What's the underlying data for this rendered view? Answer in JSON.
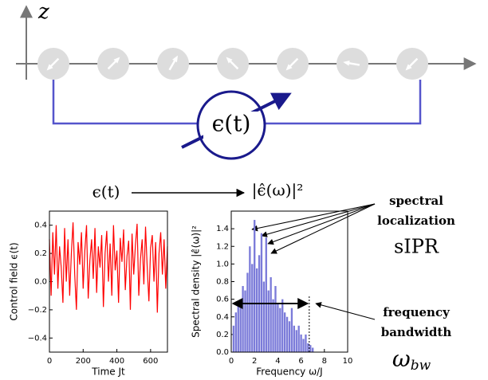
{
  "diagram": {
    "axis_label": "z",
    "control_label": "ϵ(t)",
    "signal_label": "ϵ(t)",
    "spectrum_label": "|ϵ̂(ω)|²"
  },
  "annotations": {
    "localization_line1": "spectral",
    "localization_line2": "localization",
    "localization_symbol": "sIPR",
    "bandwidth_line1": "frequency",
    "bandwidth_line2": "bandwidth",
    "bandwidth_symbol": "ω",
    "bandwidth_subscript": "bw"
  },
  "chart_data": [
    {
      "type": "line",
      "ylabel": "Control field ϵ(t)",
      "xlabel": "Time Jt",
      "color": "#ff0000",
      "x": [
        0,
        10,
        20,
        30,
        40,
        50,
        60,
        70,
        80,
        90,
        100,
        110,
        120,
        130,
        140,
        150,
        160,
        170,
        180,
        190,
        200,
        210,
        220,
        230,
        240,
        250,
        260,
        270,
        280,
        290,
        300,
        310,
        320,
        330,
        340,
        350,
        360,
        370,
        380,
        390,
        400,
        410,
        420,
        430,
        440,
        450,
        460,
        470,
        480,
        490,
        500,
        510,
        520,
        530,
        540,
        550,
        560,
        570,
        580,
        590,
        600,
        610,
        620,
        630,
        640,
        650,
        660,
        670,
        680,
        690,
        700
      ],
      "values": [
        0.3,
        -0.1,
        0.35,
        0.05,
        0.4,
        -0.05,
        0.25,
        0.1,
        -0.15,
        0.38,
        0.0,
        0.3,
        -0.1,
        0.2,
        0.42,
        0.05,
        -0.2,
        0.28,
        0.12,
        0.35,
        -0.05,
        0.22,
        0.4,
        -0.12,
        0.15,
        0.3,
        0.02,
        0.38,
        -0.08,
        0.25,
        0.1,
        0.33,
        -0.18,
        0.2,
        0.36,
        0.0,
        0.27,
        -0.1,
        0.4,
        0.08,
        0.22,
        -0.15,
        0.31,
        0.14,
        0.37,
        -0.06,
        0.18,
        0.29,
        -0.2,
        0.34,
        0.05,
        0.26,
        0.41,
        -0.1,
        0.16,
        0.3,
        -0.02,
        0.39,
        0.1,
        -0.14,
        0.24,
        0.33,
        0.0,
        0.28,
        -0.22,
        0.2,
        0.35,
        0.05,
        0.3,
        -0.05,
        0.25
      ],
      "xlim": [
        0,
        700
      ],
      "ylim": [
        -0.5,
        0.5
      ],
      "xticks": [
        0,
        200,
        400,
        600
      ],
      "yticks": [
        {
          "value": -0.4,
          "label": "−0.4"
        },
        {
          "value": -0.2,
          "label": "−0.2"
        },
        {
          "value": 0,
          "label": "0.0"
        },
        0.2,
        0.4
      ]
    },
    {
      "type": "bar",
      "ylabel": "Spectral density |ϵ̂(ω)|²",
      "xlabel": "Frequency ω/J",
      "color": "#7b7bd9",
      "x": [
        0.2,
        0.4,
        0.6,
        0.8,
        1.0,
        1.2,
        1.4,
        1.6,
        1.8,
        2.0,
        2.2,
        2.4,
        2.6,
        2.8,
        3.0,
        3.2,
        3.4,
        3.6,
        3.8,
        4.0,
        4.2,
        4.4,
        4.6,
        4.8,
        5.0,
        5.2,
        5.4,
        5.6,
        5.8,
        6.0,
        6.2,
        6.4,
        6.6,
        6.8,
        7.0
      ],
      "values": [
        0.3,
        0.45,
        0.55,
        0.6,
        0.75,
        0.7,
        0.9,
        1.2,
        1.0,
        1.5,
        0.95,
        1.1,
        1.35,
        0.8,
        1.3,
        0.7,
        0.85,
        0.6,
        0.75,
        0.55,
        0.5,
        0.6,
        0.45,
        0.4,
        0.35,
        0.5,
        0.3,
        0.25,
        0.3,
        0.2,
        0.15,
        0.2,
        0.1,
        0.08,
        0.05
      ],
      "bandwidth": 6.7,
      "xlim": [
        0,
        10
      ],
      "ylim": [
        0,
        1.6
      ],
      "xticks": [
        0,
        2,
        4,
        6,
        8,
        10
      ],
      "yticks": [
        {
          "value": 0,
          "label": "0.0"
        },
        0.2,
        0.4,
        0.6,
        0.8,
        {
          "value": 1,
          "label": "1.0"
        },
        1.2,
        1.4
      ]
    }
  ]
}
